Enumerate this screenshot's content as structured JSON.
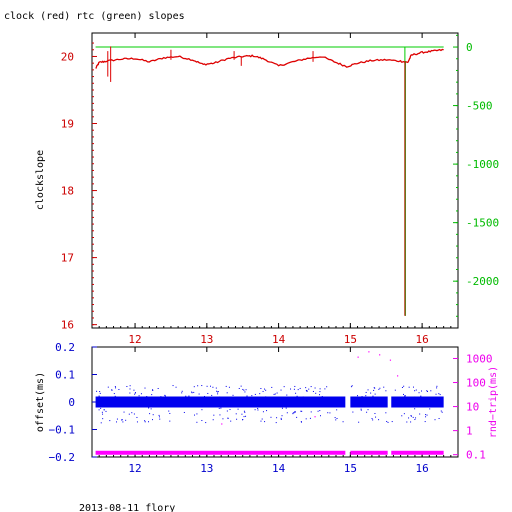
{
  "chart_data": [
    {
      "type": "line",
      "title": "clock (red) rtc (green) slopes",
      "xlim": [
        11.4,
        16.5
      ],
      "xticks": [
        "12",
        "13",
        "14",
        "15",
        "16"
      ],
      "ylabel": "clockslope",
      "ylim": [
        15.95,
        20.35
      ],
      "yticks_left": [
        "20",
        "19",
        "18",
        "17",
        "16"
      ],
      "y2lim": [
        -2400,
        120
      ],
      "yticks_right": [
        "0",
        "-500",
        "-1000",
        "-1500",
        "-2000"
      ],
      "colors": {
        "clock": "#dd0000",
        "rtc": "#00cc00",
        "axis_left": "#cc0000",
        "axis_right": "#00bb00",
        "bottom_ticks": "#cc0000"
      },
      "series": [
        {
          "name": "clock",
          "color": "#dd0000",
          "x": [
            11.45,
            11.5,
            11.6,
            11.8,
            12.0,
            12.2,
            12.4,
            12.6,
            12.8,
            12.95,
            13.1,
            13.3,
            13.5,
            13.65,
            13.8,
            14.0,
            14.2,
            14.4,
            14.6,
            14.8,
            14.95,
            15.1,
            15.3,
            15.5,
            15.7,
            15.8,
            15.85,
            16.0,
            16.15,
            16.3
          ],
          "y": [
            19.82,
            19.91,
            19.93,
            19.96,
            19.97,
            19.92,
            19.98,
            20.0,
            19.95,
            19.88,
            19.9,
            19.97,
            20.0,
            20.01,
            19.96,
            19.86,
            19.92,
            19.97,
            20.0,
            19.91,
            19.85,
            19.9,
            19.94,
            19.95,
            19.93,
            19.91,
            20.02,
            20.06,
            20.08,
            20.1
          ],
          "spikes": [
            {
              "x": 11.62,
              "low": 19.7,
              "high": 20.08
            },
            {
              "x": 11.66,
              "low": 19.62,
              "high": 20.15
            },
            {
              "x": 12.5,
              "low": 19.95,
              "high": 20.1
            },
            {
              "x": 13.38,
              "low": 19.95,
              "high": 20.08
            },
            {
              "x": 13.48,
              "low": 19.86,
              "high": 20.0
            },
            {
              "x": 14.48,
              "low": 19.92,
              "high": 20.08
            },
            {
              "x": 15.76,
              "low": 16.13,
              "high": 19.93
            }
          ]
        },
        {
          "name": "rtc",
          "color": "#00cc00",
          "x": [
            11.45,
            12.0,
            12.5,
            13.0,
            13.5,
            14.0,
            14.5,
            15.0,
            15.5,
            15.75,
            15.8,
            16.0,
            16.3
          ],
          "y": [
            0,
            0,
            0,
            0,
            0,
            0,
            0,
            0,
            0,
            0,
            0,
            0,
            0
          ],
          "spikes": [
            {
              "x": 15.76,
              "low": -2290,
              "high": 0
            }
          ]
        }
      ]
    },
    {
      "type": "scatter",
      "xlim": [
        11.4,
        16.5
      ],
      "xticks": [
        "12",
        "13",
        "14",
        "15",
        "16"
      ],
      "ylabel": "offset(ms)",
      "ylim": [
        -0.2,
        0.2
      ],
      "yticks_left": [
        "0.2",
        "0.1",
        "0",
        "−0.1",
        "−0.2"
      ],
      "y2label": "rnd−trip(ms)",
      "y2scale": "log",
      "y2lim": [
        0.08,
        3000
      ],
      "yticks_right": [
        "1000",
        "100",
        "10",
        "1",
        "0.1"
      ],
      "colors": {
        "offset": "#0000ee",
        "rtt": "#ff00ff",
        "axis_left": "#0000cc",
        "axis_right": "#ee00ee",
        "bottom_ticks": "#0000cc"
      },
      "series": [
        {
          "name": "offset",
          "color": "#0000ee",
          "x_ranges": [
            [
              11.45,
              14.93
            ],
            [
              15.0,
              15.52
            ],
            [
              15.57,
              16.3
            ]
          ],
          "y_center": 0.0,
          "y_spread": 0.02,
          "y_outlier_range": [
            -0.11,
            0.09
          ]
        },
        {
          "name": "rnd-trip",
          "color": "#ff00ff",
          "x_ranges": [
            [
              11.45,
              14.93
            ],
            [
              15.0,
              15.52
            ],
            [
              15.57,
              16.3
            ]
          ],
          "y_typical": 0.12,
          "y_outliers": [
            [
              15.1,
              1200
            ],
            [
              15.25,
              2000
            ],
            [
              15.4,
              1500
            ],
            [
              15.55,
              900
            ],
            [
              15.65,
              200
            ],
            [
              14.5,
              4
            ],
            [
              13.2,
              2
            ]
          ]
        }
      ]
    }
  ],
  "footer": {
    "caption": "2013-08-11 flory"
  }
}
